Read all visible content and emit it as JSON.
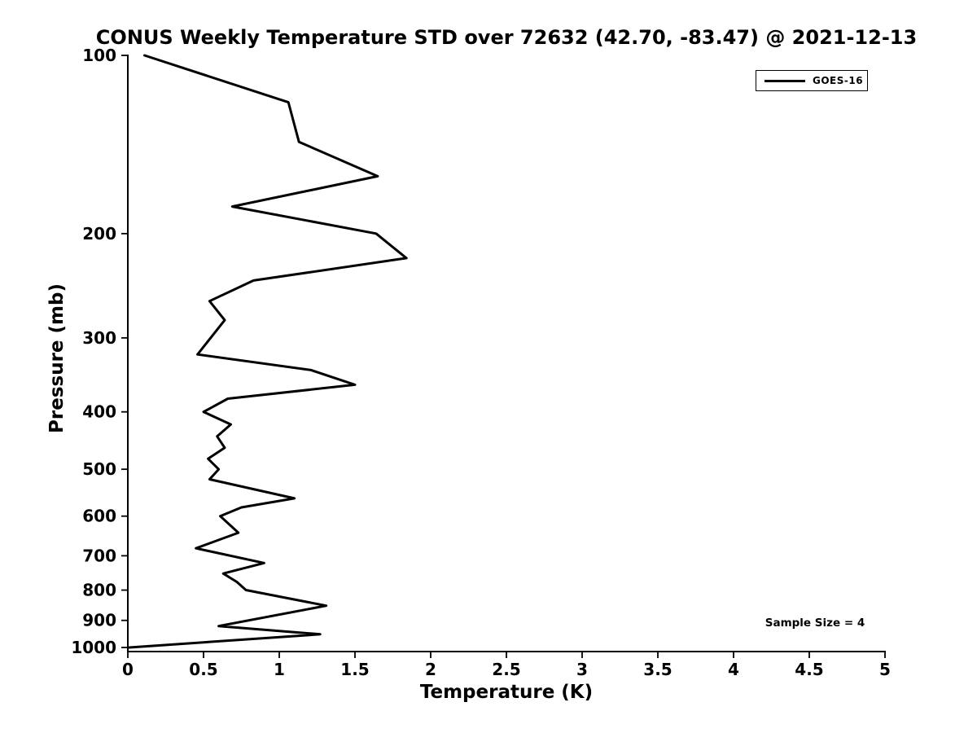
{
  "title": "CONUS Weekly Temperature STD over 72632 (42.70, -83.47) @ 2021-12-13",
  "axes": {
    "xlabel": "Temperature (K)",
    "ylabel": "Pressure (mb)",
    "x_ticks": [
      0,
      0.5,
      1,
      1.5,
      2,
      2.5,
      3,
      3.5,
      4,
      4.5,
      5
    ],
    "x_tick_labels": [
      "0",
      "0.5",
      "1",
      "1.5",
      "2",
      "2.5",
      "3",
      "3.5",
      "4",
      "4.5",
      "5"
    ],
    "y_ticks": [
      100,
      200,
      300,
      400,
      500,
      600,
      700,
      800,
      900,
      1000
    ],
    "y_tick_labels": [
      "100",
      "200",
      "300",
      "400",
      "500",
      "600",
      "700",
      "800",
      "900",
      "1000"
    ],
    "xlim": [
      0,
      5
    ],
    "ylim": [
      100,
      1000
    ],
    "y_scale": "log",
    "y_inverted": true
  },
  "legend": {
    "label": "GOES-16",
    "position": "upper right"
  },
  "annotation": {
    "text": "Sample Size = 4"
  },
  "colors": {
    "line": "#000000",
    "text": "#000000",
    "axis": "#000000",
    "background": "#ffffff"
  },
  "chart_data": {
    "type": "line",
    "title": "CONUS Weekly Temperature STD over 72632 (42.70, -83.47) @ 2021-12-13",
    "xlabel": "Temperature (K)",
    "ylabel": "Pressure (mb)",
    "xlim": [
      0,
      5
    ],
    "ylim": [
      100,
      1000
    ],
    "y_scale": "log",
    "y_inverted": true,
    "grid": false,
    "legend_position": "upper right",
    "point_format": "[pressure_mb, temperature_std_K]",
    "series": [
      {
        "name": "GOES-16",
        "color": "#000000",
        "points": [
          [
            100,
            0.11
          ],
          [
            120,
            1.06
          ],
          [
            140,
            1.13
          ],
          [
            160,
            1.65
          ],
          [
            180,
            0.69
          ],
          [
            200,
            1.64
          ],
          [
            220,
            1.84
          ],
          [
            240,
            0.83
          ],
          [
            260,
            0.54
          ],
          [
            280,
            0.64
          ],
          [
            320,
            0.46
          ],
          [
            340,
            1.21
          ],
          [
            360,
            1.5
          ],
          [
            380,
            0.66
          ],
          [
            400,
            0.5
          ],
          [
            420,
            0.68
          ],
          [
            440,
            0.59
          ],
          [
            460,
            0.64
          ],
          [
            480,
            0.53
          ],
          [
            500,
            0.6
          ],
          [
            520,
            0.54
          ],
          [
            560,
            1.1
          ],
          [
            580,
            0.75
          ],
          [
            600,
            0.61
          ],
          [
            640,
            0.73
          ],
          [
            680,
            0.45
          ],
          [
            720,
            0.9
          ],
          [
            750,
            0.63
          ],
          [
            775,
            0.72
          ],
          [
            800,
            0.78
          ],
          [
            850,
            1.31
          ],
          [
            920,
            0.6
          ],
          [
            950,
            1.27
          ],
          [
            1000,
            0.01
          ]
        ]
      }
    ],
    "annotations": [
      "Sample Size = 4"
    ]
  }
}
